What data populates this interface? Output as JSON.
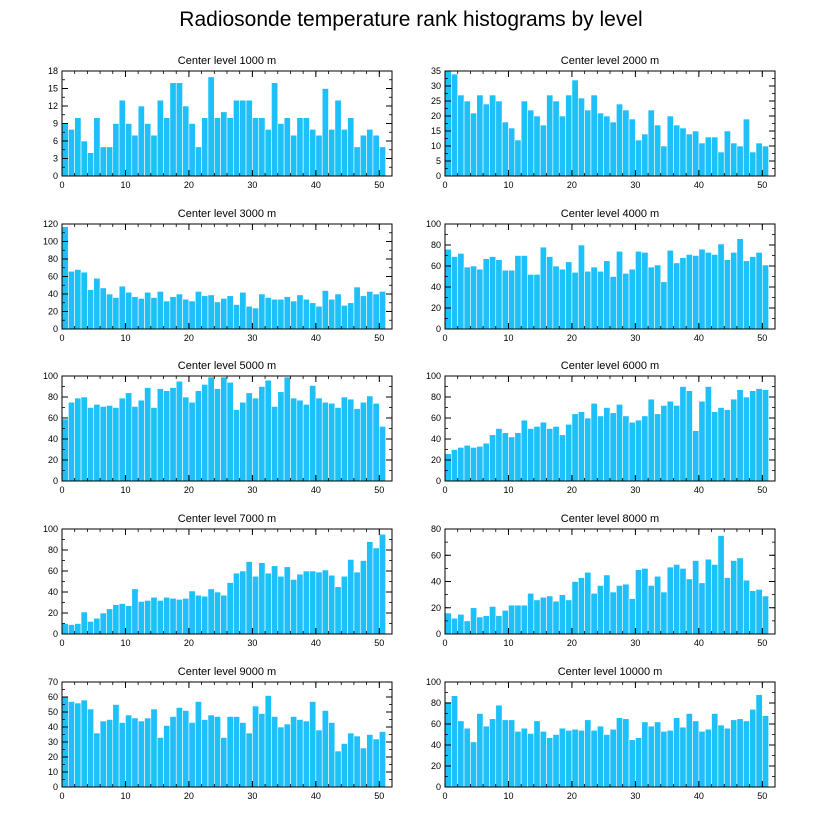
{
  "title": "Radiosonde temperature rank histograms by level",
  "colors": {
    "bar": "#1EC0FA",
    "bar_edge": "#ffffff",
    "axis": "#000000"
  },
  "chart_data": [
    {
      "type": "bar",
      "title": "Center level 1000 m",
      "xlim": [
        0,
        52
      ],
      "ylim": [
        0,
        18
      ],
      "xticks": [
        0,
        10,
        20,
        30,
        40,
        50
      ],
      "yticks": [
        0,
        3,
        6,
        9,
        12,
        15,
        18
      ],
      "values": [
        9,
        8,
        10,
        6,
        4,
        10,
        5,
        5,
        9,
        13,
        9,
        7,
        12,
        9,
        7,
        13,
        10,
        16,
        16,
        12,
        9,
        5,
        10,
        17,
        10,
        11,
        10,
        13,
        13,
        13,
        10,
        10,
        8,
        16,
        9,
        10,
        7,
        10,
        10,
        8,
        7,
        15,
        8,
        13,
        8,
        10,
        5,
        7,
        8,
        7,
        5
      ]
    },
    {
      "type": "bar",
      "title": "Center level 2000 m",
      "xlim": [
        0,
        52
      ],
      "ylim": [
        0,
        35
      ],
      "xticks": [
        0,
        10,
        20,
        30,
        40,
        50
      ],
      "yticks": [
        0,
        5,
        10,
        15,
        20,
        25,
        30,
        35
      ],
      "values": [
        35,
        34,
        27,
        25,
        21,
        27,
        24,
        27,
        25,
        18,
        16,
        12,
        25,
        22,
        20,
        17,
        27,
        25,
        20,
        27,
        32,
        26,
        22,
        27,
        21,
        20,
        18,
        24,
        22,
        19,
        12,
        14,
        22,
        17,
        10,
        20,
        17,
        16,
        14,
        15,
        11,
        13,
        13,
        8,
        15,
        11,
        10,
        19,
        8,
        11,
        10
      ]
    },
    {
      "type": "bar",
      "title": "Center level 3000 m",
      "xlim": [
        0,
        52
      ],
      "ylim": [
        0,
        120
      ],
      "xticks": [
        0,
        10,
        20,
        30,
        40,
        50
      ],
      "yticks": [
        0,
        20,
        40,
        60,
        80,
        100,
        120
      ],
      "values": [
        117,
        66,
        68,
        65,
        45,
        58,
        47,
        40,
        36,
        49,
        42,
        37,
        35,
        42,
        36,
        43,
        32,
        37,
        40,
        34,
        32,
        43,
        38,
        39,
        31,
        35,
        38,
        28,
        42,
        26,
        24,
        40,
        36,
        34,
        34,
        37,
        32,
        39,
        34,
        30,
        26,
        44,
        34,
        40,
        27,
        30,
        48,
        38,
        43,
        40,
        43
      ]
    },
    {
      "type": "bar",
      "title": "Center level 4000 m",
      "xlim": [
        0,
        52
      ],
      "ylim": [
        0,
        100
      ],
      "xticks": [
        0,
        10,
        20,
        30,
        40,
        50
      ],
      "yticks": [
        0,
        20,
        40,
        60,
        80,
        100
      ],
      "values": [
        76,
        69,
        72,
        59,
        60,
        57,
        67,
        69,
        66,
        56,
        56,
        70,
        70,
        52,
        52,
        78,
        69,
        60,
        57,
        64,
        54,
        80,
        55,
        59,
        55,
        65,
        50,
        74,
        53,
        57,
        74,
        73,
        59,
        61,
        45,
        75,
        63,
        68,
        71,
        70,
        76,
        73,
        71,
        81,
        66,
        73,
        86,
        65,
        69,
        73,
        61
      ]
    },
    {
      "type": "bar",
      "title": "Center level 5000 m",
      "xlim": [
        0,
        52
      ],
      "ylim": [
        0,
        100
      ],
      "xticks": [
        0,
        10,
        20,
        30,
        40,
        50
      ],
      "yticks": [
        0,
        20,
        40,
        60,
        80,
        100
      ],
      "values": [
        59,
        75,
        79,
        80,
        70,
        73,
        71,
        72,
        70,
        79,
        84,
        71,
        77,
        89,
        70,
        88,
        86,
        89,
        95,
        80,
        75,
        86,
        92,
        99,
        88,
        99,
        94,
        68,
        75,
        84,
        79,
        90,
        96,
        71,
        85,
        99,
        79,
        77,
        73,
        91,
        79,
        75,
        74,
        70,
        80,
        78,
        69,
        75,
        81,
        74,
        52
      ]
    },
    {
      "type": "bar",
      "title": "Center level 6000 m",
      "xlim": [
        0,
        52
      ],
      "ylim": [
        0,
        100
      ],
      "xticks": [
        0,
        10,
        20,
        30,
        40,
        50
      ],
      "yticks": [
        0,
        20,
        40,
        60,
        80,
        100
      ],
      "values": [
        26,
        30,
        32,
        34,
        32,
        33,
        36,
        44,
        50,
        46,
        42,
        46,
        58,
        50,
        52,
        56,
        50,
        52,
        44,
        54,
        64,
        66,
        60,
        74,
        62,
        70,
        65,
        73,
        62,
        56,
        58,
        62,
        78,
        64,
        72,
        76,
        72,
        90,
        86,
        48,
        76,
        90,
        66,
        70,
        68,
        78,
        87,
        80,
        86,
        88,
        87
      ]
    },
    {
      "type": "bar",
      "title": "Center level 7000 m",
      "xlim": [
        0,
        52
      ],
      "ylim": [
        0,
        100
      ],
      "xticks": [
        0,
        10,
        20,
        30,
        40,
        50
      ],
      "yticks": [
        0,
        20,
        40,
        60,
        80,
        100
      ],
      "values": [
        10,
        9,
        10,
        21,
        12,
        15,
        20,
        24,
        28,
        29,
        27,
        43,
        31,
        32,
        35,
        32,
        35,
        34,
        33,
        34,
        41,
        37,
        36,
        43,
        40,
        37,
        49,
        58,
        60,
        69,
        55,
        68,
        58,
        65,
        55,
        64,
        52,
        57,
        60,
        60,
        59,
        61,
        56,
        45,
        55,
        71,
        59,
        70,
        88,
        82,
        95
      ]
    },
    {
      "type": "bar",
      "title": "Center level 8000 m",
      "xlim": [
        0,
        52
      ],
      "ylim": [
        0,
        80
      ],
      "xticks": [
        0,
        10,
        20,
        30,
        40,
        50
      ],
      "yticks": [
        0,
        20,
        40,
        60,
        80
      ],
      "values": [
        16,
        12,
        15,
        10,
        20,
        13,
        14,
        21,
        14,
        18,
        22,
        22,
        22,
        31,
        26,
        28,
        29,
        25,
        30,
        26,
        40,
        43,
        47,
        31,
        37,
        45,
        32,
        37,
        38,
        27,
        49,
        50,
        37,
        44,
        32,
        51,
        53,
        50,
        42,
        56,
        39,
        57,
        53,
        75,
        43,
        56,
        58,
        41,
        33,
        34,
        29
      ]
    },
    {
      "type": "bar",
      "title": "Center level 9000 m",
      "xlim": [
        0,
        52
      ],
      "ylim": [
        0,
        70
      ],
      "xticks": [
        0,
        10,
        20,
        30,
        40,
        50
      ],
      "yticks": [
        0,
        10,
        20,
        30,
        40,
        50,
        60,
        70
      ],
      "values": [
        60,
        57,
        56,
        58,
        52,
        36,
        44,
        45,
        55,
        43,
        48,
        46,
        44,
        46,
        52,
        33,
        41,
        47,
        53,
        51,
        43,
        57,
        45,
        48,
        47,
        33,
        47,
        47,
        43,
        36,
        54,
        49,
        61,
        47,
        40,
        42,
        47,
        45,
        44,
        57,
        38,
        51,
        43,
        24,
        29,
        36,
        34,
        26,
        35,
        32,
        37
      ]
    },
    {
      "type": "bar",
      "title": "Center level 10000 m",
      "xlim": [
        0,
        52
      ],
      "ylim": [
        0,
        100
      ],
      "xticks": [
        0,
        10,
        20,
        30,
        40,
        50
      ],
      "yticks": [
        0,
        20,
        40,
        60,
        80,
        100
      ],
      "values": [
        81,
        87,
        63,
        56,
        43,
        70,
        58,
        65,
        78,
        64,
        64,
        53,
        56,
        51,
        63,
        53,
        47,
        50,
        56,
        54,
        55,
        54,
        64,
        54,
        58,
        50,
        55,
        66,
        65,
        45,
        47,
        62,
        58,
        62,
        53,
        54,
        66,
        57,
        70,
        63,
        53,
        55,
        70,
        59,
        56,
        64,
        65,
        63,
        74,
        88,
        68
      ]
    }
  ]
}
